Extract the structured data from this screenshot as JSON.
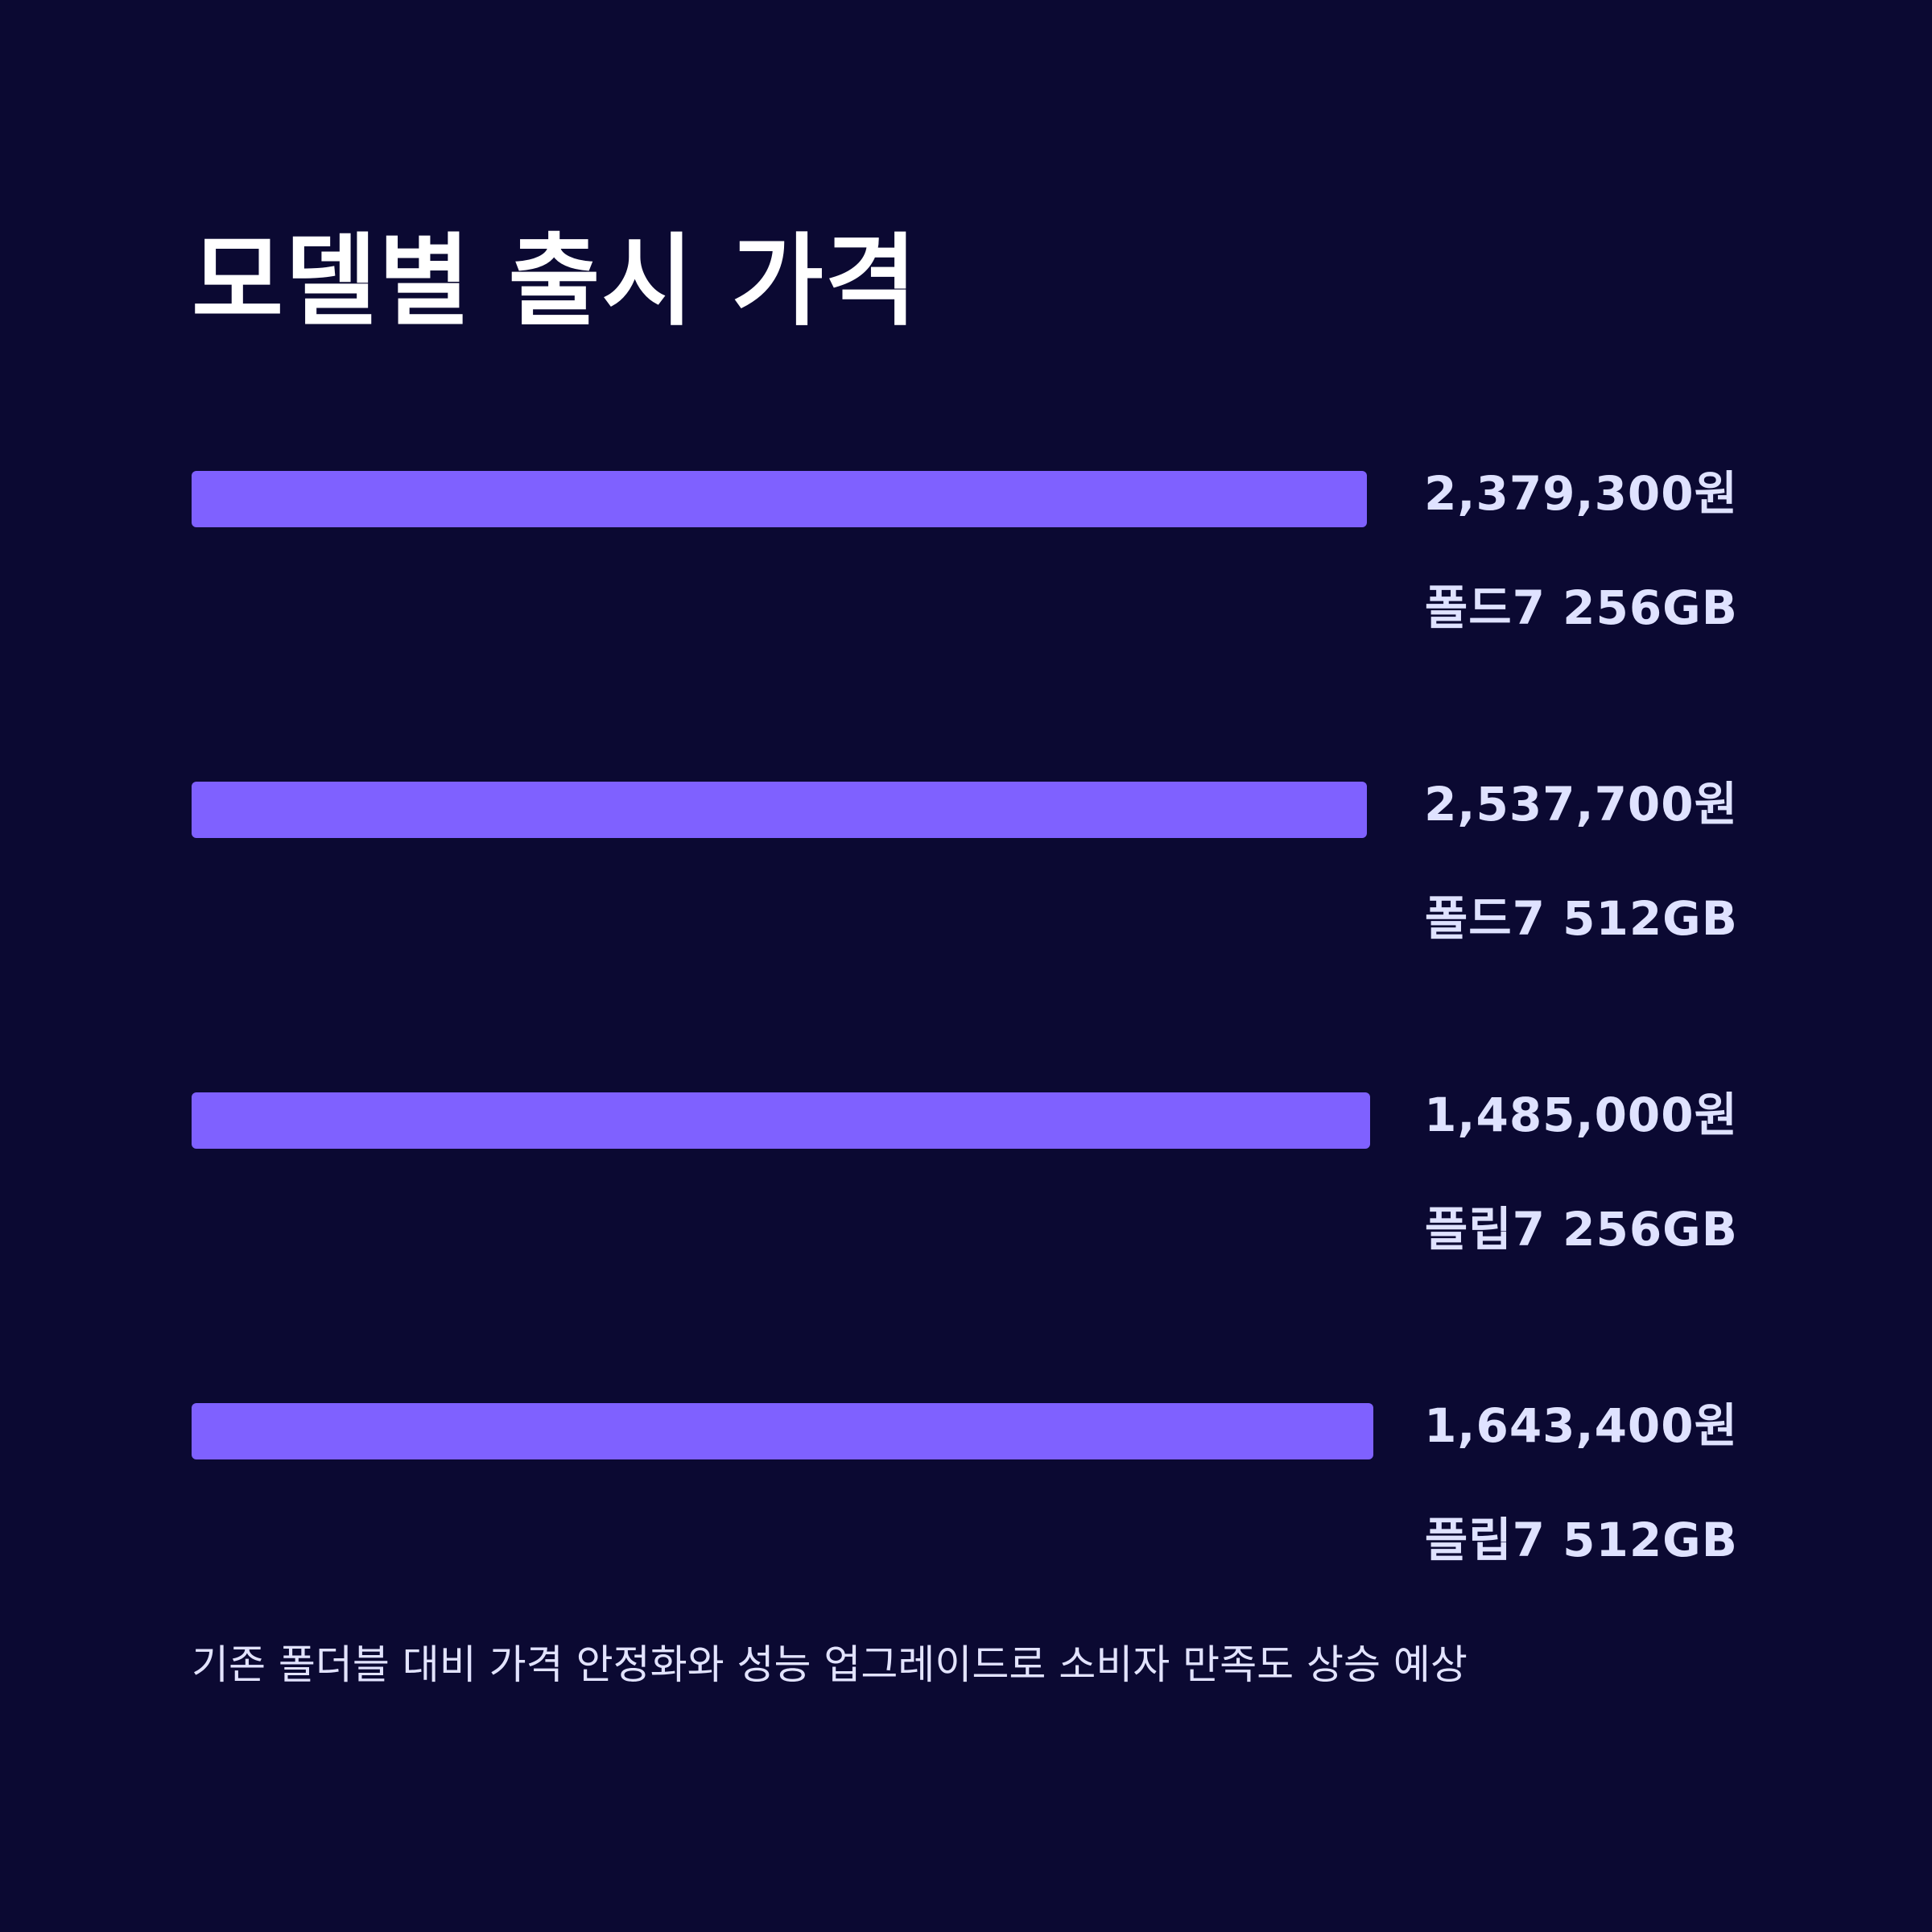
{
  "title": "모델별 출시 가격",
  "footnote": "기존 폴더블 대비 가격 안정화와 성능 업그레이드로 소비자 만족도 상승 예상",
  "colors": {
    "background": "#0b0932",
    "bar": "#7f61ff",
    "label": "#dfe2ff",
    "title": "#ffffff"
  },
  "chart_data": {
    "type": "bar",
    "orientation": "horizontal",
    "categories": [
      "폴드7 256GB",
      "폴드7 512GB",
      "플립7 256GB",
      "플립7 512GB"
    ],
    "values": [
      2379300,
      2537700,
      1485000,
      1643400
    ],
    "value_labels": [
      "2,379,300원",
      "2,537,700원",
      "1,485,000원",
      "1,643,400원"
    ],
    "unit": "원",
    "grid": false,
    "legend": "none"
  }
}
